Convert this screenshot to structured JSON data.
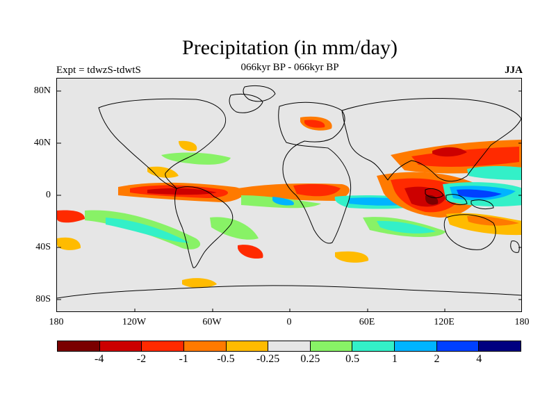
{
  "title": "Precipitation (in mm/day)",
  "subtitle": "066kyr BP - 066kyr BP",
  "left_string": "Expt = tdwzS-tdwtS",
  "right_string": "JJA",
  "lat_labels": [
    "80N",
    "40N",
    "0",
    "40S",
    "80S"
  ],
  "lon_labels": [
    "180",
    "120W",
    "60W",
    "0",
    "60E",
    "120E",
    "180"
  ],
  "colorbar": {
    "colors": [
      "#7a0000",
      "#cc0000",
      "#ff2a00",
      "#ff7a00",
      "#ffbb00",
      "#e6e6e6",
      "#88f266",
      "#33f0c8",
      "#00b4ff",
      "#0040ff",
      "#000080"
    ],
    "labels": [
      "-4",
      "-2",
      "-1",
      "-0.5",
      "-0.25",
      "0.25",
      "0.5",
      "1",
      "2",
      "4"
    ]
  },
  "map_colors": {
    "ocean_land_bg": "#e6e6e6",
    "coast": "#000000"
  }
}
